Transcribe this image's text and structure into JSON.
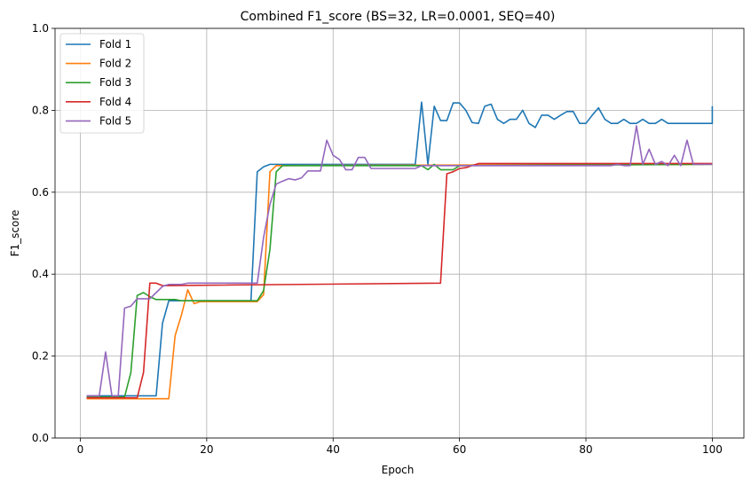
{
  "chart_data": {
    "type": "line",
    "title": "Combined F1_score (BS=32, LR=0.0001, SEQ=40)",
    "xlabel": "Epoch",
    "ylabel": "F1_score",
    "xlim": [
      -4,
      105
    ],
    "ylim": [
      0,
      1
    ],
    "xticks": [
      0,
      20,
      40,
      60,
      80,
      100
    ],
    "yticks": [
      0.0,
      0.2,
      0.4,
      0.6,
      0.8,
      1.0
    ],
    "ytick_labels": [
      "0.0",
      "0.2",
      "0.4",
      "0.6",
      "0.8",
      "1.0"
    ],
    "grid": true,
    "legend_position": "top-left",
    "series": [
      {
        "name": "Fold 1",
        "color": "#1f77b4",
        "points": [
          [
            1,
            0.103
          ],
          [
            12,
            0.103
          ],
          [
            13,
            0.28
          ],
          [
            14,
            0.335
          ],
          [
            27,
            0.335
          ],
          [
            28,
            0.65
          ],
          [
            29,
            0.662
          ],
          [
            30,
            0.668
          ],
          [
            53,
            0.668
          ],
          [
            54,
            0.82
          ],
          [
            55,
            0.668
          ],
          [
            56,
            0.81
          ],
          [
            57,
            0.775
          ],
          [
            58,
            0.775
          ],
          [
            59,
            0.818
          ],
          [
            60,
            0.818
          ],
          [
            61,
            0.8
          ],
          [
            62,
            0.77
          ],
          [
            63,
            0.768
          ],
          [
            64,
            0.81
          ],
          [
            65,
            0.815
          ],
          [
            66,
            0.778
          ],
          [
            67,
            0.768
          ],
          [
            68,
            0.778
          ],
          [
            69,
            0.778
          ],
          [
            70,
            0.8
          ],
          [
            71,
            0.768
          ],
          [
            72,
            0.758
          ],
          [
            73,
            0.788
          ],
          [
            74,
            0.788
          ],
          [
            75,
            0.778
          ],
          [
            76,
            0.788
          ],
          [
            77,
            0.797
          ],
          [
            78,
            0.797
          ],
          [
            79,
            0.768
          ],
          [
            80,
            0.768
          ],
          [
            81,
            0.788
          ],
          [
            82,
            0.806
          ],
          [
            83,
            0.778
          ],
          [
            84,
            0.768
          ],
          [
            85,
            0.768
          ],
          [
            86,
            0.778
          ],
          [
            87,
            0.768
          ],
          [
            88,
            0.768
          ],
          [
            89,
            0.778
          ],
          [
            90,
            0.768
          ],
          [
            91,
            0.768
          ],
          [
            92,
            0.778
          ],
          [
            93,
            0.768
          ],
          [
            100,
            0.768
          ],
          [
            100,
            0.81
          ]
        ]
      },
      {
        "name": "Fold 2",
        "color": "#ff7f0e",
        "points": [
          [
            1,
            0.096
          ],
          [
            14,
            0.096
          ],
          [
            15,
            0.25
          ],
          [
            16,
            0.3
          ],
          [
            17,
            0.362
          ],
          [
            18,
            0.328
          ],
          [
            19,
            0.333
          ],
          [
            28,
            0.333
          ],
          [
            29,
            0.35
          ],
          [
            30,
            0.65
          ],
          [
            31,
            0.665
          ],
          [
            100,
            0.668
          ]
        ]
      },
      {
        "name": "Fold 3",
        "color": "#2ca02c",
        "points": [
          [
            1,
            0.1
          ],
          [
            7,
            0.1
          ],
          [
            8,
            0.16
          ],
          [
            9,
            0.348
          ],
          [
            10,
            0.355
          ],
          [
            11,
            0.345
          ],
          [
            12,
            0.338
          ],
          [
            15,
            0.338
          ],
          [
            16,
            0.335
          ],
          [
            28,
            0.335
          ],
          [
            29,
            0.36
          ],
          [
            30,
            0.46
          ],
          [
            31,
            0.65
          ],
          [
            32,
            0.665
          ],
          [
            54,
            0.665
          ],
          [
            55,
            0.655
          ],
          [
            56,
            0.668
          ],
          [
            57,
            0.655
          ],
          [
            59,
            0.655
          ],
          [
            60,
            0.665
          ],
          [
            100,
            0.668
          ]
        ]
      },
      {
        "name": "Fold 4",
        "color": "#d62728",
        "points": [
          [
            1,
            0.098
          ],
          [
            9,
            0.098
          ],
          [
            10,
            0.16
          ],
          [
            11,
            0.378
          ],
          [
            12,
            0.378
          ],
          [
            13,
            0.372
          ],
          [
            57,
            0.378
          ],
          [
            58,
            0.645
          ],
          [
            59,
            0.65
          ],
          [
            60,
            0.658
          ],
          [
            61,
            0.66
          ],
          [
            62,
            0.665
          ],
          [
            63,
            0.67
          ],
          [
            100,
            0.67
          ]
        ]
      },
      {
        "name": "Fold 5",
        "color": "#9467bd",
        "points": [
          [
            1,
            0.103
          ],
          [
            3,
            0.103
          ],
          [
            4,
            0.21
          ],
          [
            5,
            0.103
          ],
          [
            6,
            0.103
          ],
          [
            7,
            0.317
          ],
          [
            8,
            0.322
          ],
          [
            9,
            0.34
          ],
          [
            11,
            0.34
          ],
          [
            12,
            0.355
          ],
          [
            13,
            0.37
          ],
          [
            14,
            0.375
          ],
          [
            16,
            0.375
          ],
          [
            17,
            0.378
          ],
          [
            28,
            0.378
          ],
          [
            29,
            0.49
          ],
          [
            30,
            0.57
          ],
          [
            31,
            0.62
          ],
          [
            32,
            0.627
          ],
          [
            33,
            0.633
          ],
          [
            34,
            0.63
          ],
          [
            35,
            0.635
          ],
          [
            36,
            0.652
          ],
          [
            38,
            0.652
          ],
          [
            39,
            0.727
          ],
          [
            40,
            0.69
          ],
          [
            41,
            0.68
          ],
          [
            42,
            0.655
          ],
          [
            43,
            0.655
          ],
          [
            44,
            0.685
          ],
          [
            45,
            0.685
          ],
          [
            46,
            0.658
          ],
          [
            53,
            0.658
          ],
          [
            54,
            0.665
          ],
          [
            84,
            0.665
          ],
          [
            85,
            0.668
          ],
          [
            86,
            0.665
          ],
          [
            87,
            0.665
          ],
          [
            88,
            0.762
          ],
          [
            89,
            0.668
          ],
          [
            90,
            0.705
          ],
          [
            91,
            0.668
          ],
          [
            92,
            0.675
          ],
          [
            93,
            0.665
          ],
          [
            94,
            0.69
          ],
          [
            95,
            0.665
          ],
          [
            96,
            0.727
          ],
          [
            97,
            0.668
          ],
          [
            100,
            0.668
          ]
        ]
      }
    ]
  }
}
